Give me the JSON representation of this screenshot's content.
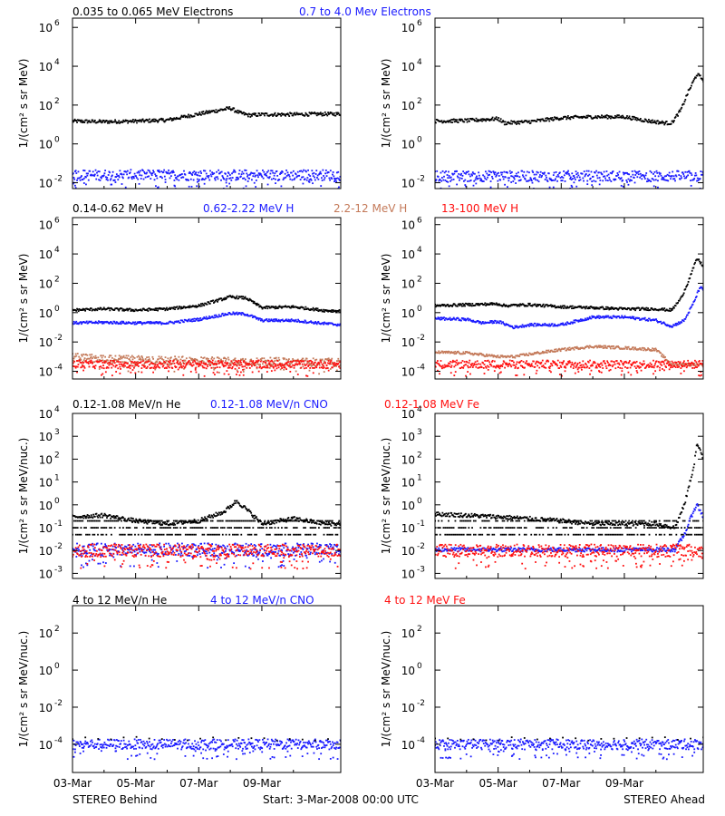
{
  "footer": {
    "left": "STEREO Behind",
    "center": "Start:  3-Mar-2008 00:00 UTC",
    "right": "STEREO Ahead"
  },
  "colors": {
    "black": "#000000",
    "blue": "#1a1aff",
    "tan": "#c47a5a",
    "red": "#ff1010"
  },
  "chart_data": [
    {
      "type": "scatter",
      "row": 1,
      "panels": [
        "STEREO Behind",
        "STEREO Ahead"
      ],
      "legend": [
        {
          "name": "0.035 to 0.065 MeV Electrons",
          "color": "#000000"
        },
        {
          "name": "0.7 to 4.0 Mev Electrons",
          "color": "#1a1aff"
        }
      ],
      "ylabel": "1/(cm² s sr MeV)",
      "yscale": "log",
      "ylim": [
        0.005,
        3000000
      ],
      "yticks": [
        {
          "label": "10",
          "exp": "6",
          "value": 1000000
        },
        {
          "label": "10",
          "exp": "4",
          "value": 10000
        },
        {
          "label": "10",
          "exp": "2",
          "value": 100
        },
        {
          "label": "10",
          "exp": "0",
          "value": 1
        },
        {
          "label": "10",
          "exp": "-2",
          "value": 0.01
        }
      ],
      "series_left": [
        {
          "name": "0.035 to 0.065 MeV Electrons",
          "color": "#000000",
          "points": [
            [
              0,
              15
            ],
            [
              1,
              14
            ],
            [
              2,
              15
            ],
            [
              3,
              17
            ],
            [
              4,
              35
            ],
            [
              5,
              70
            ],
            [
              5.3,
              40
            ],
            [
              5.6,
              30
            ],
            [
              6,
              33
            ],
            [
              7,
              33
            ],
            [
              8,
              35
            ],
            [
              8.5,
              35
            ]
          ]
        },
        {
          "name": "0.7 to 4.0 Mev Electrons",
          "color": "#1a1aff",
          "band": true,
          "points": [
            [
              0,
              0.025
            ],
            [
              8.5,
              0.025
            ]
          ]
        }
      ],
      "series_right": [
        {
          "name": "0.035 to 0.065 MeV Electrons",
          "color": "#000000",
          "points": [
            [
              0,
              15
            ],
            [
              1,
              16
            ],
            [
              2,
              20
            ],
            [
              2.2,
              12
            ],
            [
              3,
              14
            ],
            [
              4,
              22
            ],
            [
              5,
              25
            ],
            [
              6,
              25
            ],
            [
              6.8,
              15
            ],
            [
              7.3,
              12
            ],
            [
              7.5,
              12
            ],
            [
              7.8,
              60
            ],
            [
              8,
              400
            ],
            [
              8.3,
              4000
            ],
            [
              8.5,
              2000
            ]
          ]
        },
        {
          "name": "0.7 to 4.0 Mev Electrons",
          "color": "#1a1aff",
          "band": true,
          "points": [
            [
              0,
              0.022
            ],
            [
              8.5,
              0.022
            ]
          ]
        }
      ]
    },
    {
      "type": "scatter",
      "row": 2,
      "panels": [
        "STEREO Behind",
        "STEREO Ahead"
      ],
      "legend": [
        {
          "name": "0.14-0.62 MeV H",
          "color": "#000000"
        },
        {
          "name": "0.62-2.22 MeV H",
          "color": "#1a1aff"
        },
        {
          "name": "2.2-12 MeV H",
          "color": "#c47a5a"
        },
        {
          "name": "13-100 MeV H",
          "color": "#ff1010"
        }
      ],
      "ylabel": "1/(cm² s sr MeV)",
      "yscale": "log",
      "ylim": [
        3e-05,
        3000000
      ],
      "yticks": [
        {
          "label": "10",
          "exp": "6",
          "value": 1000000
        },
        {
          "label": "10",
          "exp": "4",
          "value": 10000
        },
        {
          "label": "10",
          "exp": "2",
          "value": 100
        },
        {
          "label": "10",
          "exp": "0",
          "value": 1
        },
        {
          "label": "10",
          "exp": "-2",
          "value": 0.01
        },
        {
          "label": "10",
          "exp": "-4",
          "value": 0.0001
        }
      ],
      "series_left": [
        {
          "name": "0.14-0.62 MeV H",
          "color": "#000000",
          "points": [
            [
              0,
              1.5
            ],
            [
              1,
              1.8
            ],
            [
              2,
              1.5
            ],
            [
              3,
              1.8
            ],
            [
              4,
              3
            ],
            [
              5,
              12
            ],
            [
              5.5,
              10
            ],
            [
              6,
              2.2
            ],
            [
              7,
              2.5
            ],
            [
              8,
              1.4
            ],
            [
              8.5,
              1.3
            ]
          ]
        },
        {
          "name": "0.62-2.22 MeV H",
          "color": "#1a1aff",
          "points": [
            [
              0,
              0.2
            ],
            [
              1,
              0.22
            ],
            [
              2,
              0.2
            ],
            [
              3,
              0.2
            ],
            [
              4,
              0.35
            ],
            [
              5,
              0.9
            ],
            [
              5.5,
              0.8
            ],
            [
              6,
              0.3
            ],
            [
              7,
              0.3
            ],
            [
              8,
              0.18
            ],
            [
              8.5,
              0.15
            ]
          ]
        },
        {
          "name": "2.2-12 MeV H",
          "color": "#c47a5a",
          "band": true,
          "points": [
            [
              0,
              0.0009
            ],
            [
              2,
              0.0006
            ],
            [
              8.5,
              0.0004
            ]
          ]
        },
        {
          "name": "13-100 MeV H",
          "color": "#ff1010",
          "band": true,
          "points": [
            [
              0,
              0.0003
            ],
            [
              8.5,
              0.0003
            ]
          ]
        }
      ],
      "series_right": [
        {
          "name": "0.14-0.62 MeV H",
          "color": "#000000",
          "points": [
            [
              0,
              3
            ],
            [
              1,
              3.5
            ],
            [
              2,
              4
            ],
            [
              2.2,
              3
            ],
            [
              3,
              3.5
            ],
            [
              4,
              2.5
            ],
            [
              5,
              2.2
            ],
            [
              6,
              1.8
            ],
            [
              7,
              1.8
            ],
            [
              7.5,
              1.5
            ],
            [
              7.8,
              10
            ],
            [
              8,
              100
            ],
            [
              8.3,
              5000
            ],
            [
              8.5,
              1500
            ]
          ]
        },
        {
          "name": "0.62-2.22 MeV H",
          "color": "#1a1aff",
          "points": [
            [
              0,
              0.4
            ],
            [
              1,
              0.35
            ],
            [
              1.5,
              0.2
            ],
            [
              2,
              0.25
            ],
            [
              2.5,
              0.1
            ],
            [
              3,
              0.15
            ],
            [
              4,
              0.15
            ],
            [
              5,
              0.5
            ],
            [
              6,
              0.5
            ],
            [
              7,
              0.3
            ],
            [
              7.5,
              0.12
            ],
            [
              7.9,
              0.3
            ],
            [
              8.2,
              5
            ],
            [
              8.4,
              60
            ],
            [
              8.5,
              30
            ]
          ]
        },
        {
          "name": "2.2-12 MeV H",
          "color": "#c47a5a",
          "points": [
            [
              0,
              0.002
            ],
            [
              1,
              0.0018
            ],
            [
              2,
              0.001
            ],
            [
              2.5,
              0.001
            ],
            [
              3,
              0.0015
            ],
            [
              4,
              0.003
            ],
            [
              5,
              0.005
            ],
            [
              6,
              0.004
            ],
            [
              7,
              0.003
            ],
            [
              7.5,
              0.0003
            ],
            [
              8.5,
              0.0003
            ]
          ]
        },
        {
          "name": "13-100 MeV H",
          "color": "#ff1010",
          "band": true,
          "points": [
            [
              0,
              0.0003
            ],
            [
              8.5,
              0.0003
            ]
          ]
        }
      ]
    },
    {
      "type": "scatter",
      "row": 3,
      "panels": [
        "STEREO Behind",
        "STEREO Ahead"
      ],
      "legend": [
        {
          "name": "0.12-1.08 MeV/n He",
          "color": "#000000"
        },
        {
          "name": "0.12-1.08 MeV/n CNO",
          "color": "#1a1aff"
        },
        {
          "name": "0.12-1.08 MeV Fe",
          "color": "#ff1010"
        }
      ],
      "ylabel": "1/(cm² s sr MeV/nuc.)",
      "yscale": "log",
      "ylim": [
        0.0006,
        10000
      ],
      "yticks": [
        {
          "label": "10",
          "exp": "4",
          "value": 10000
        },
        {
          "label": "10",
          "exp": "3",
          "value": 1000
        },
        {
          "label": "10",
          "exp": "2",
          "value": 100
        },
        {
          "label": "10",
          "exp": "1",
          "value": 10
        },
        {
          "label": "10",
          "exp": "0",
          "value": 1
        },
        {
          "label": "10",
          "exp": "-1",
          "value": 0.1
        },
        {
          "label": "10",
          "exp": "-2",
          "value": 0.01
        },
        {
          "label": "10",
          "exp": "-3",
          "value": 0.001
        }
      ],
      "series_left": [
        {
          "name": "0.12-1.08 MeV/n He",
          "color": "#000000",
          "levels": [
            0.2,
            0.1,
            0.05
          ],
          "points": [
            [
              0,
              0.3
            ],
            [
              1,
              0.35
            ],
            [
              2,
              0.2
            ],
            [
              3,
              0.15
            ],
            [
              4,
              0.2
            ],
            [
              4.8,
              0.5
            ],
            [
              5.2,
              1.5
            ],
            [
              5.6,
              0.5
            ],
            [
              6,
              0.15
            ],
            [
              7,
              0.25
            ],
            [
              8,
              0.15
            ],
            [
              8.5,
              0.15
            ]
          ]
        },
        {
          "name": "0.12-1.08 MeV/n CNO",
          "color": "#1a1aff",
          "band": true,
          "points": [
            [
              0,
              0.011
            ],
            [
              8.5,
              0.011
            ]
          ]
        },
        {
          "name": "0.12-1.08 MeV Fe",
          "color": "#ff1010",
          "band": true,
          "points": [
            [
              0,
              0.01
            ],
            [
              8.5,
              0.01
            ]
          ]
        }
      ],
      "series_right": [
        {
          "name": "0.12-1.08 MeV/n He",
          "color": "#000000",
          "levels": [
            0.2,
            0.1,
            0.05
          ],
          "points": [
            [
              0,
              0.4
            ],
            [
              1,
              0.35
            ],
            [
              2,
              0.3
            ],
            [
              3,
              0.25
            ],
            [
              4,
              0.2
            ],
            [
              5,
              0.15
            ],
            [
              6,
              0.15
            ],
            [
              7,
              0.15
            ],
            [
              7.6,
              0.1
            ],
            [
              7.9,
              1
            ],
            [
              8.2,
              50
            ],
            [
              8.3,
              500
            ],
            [
              8.5,
              100
            ]
          ]
        },
        {
          "name": "0.12-1.08 MeV/n CNO",
          "color": "#1a1aff",
          "points": [
            [
              0,
              0.011
            ],
            [
              7.6,
              0.011
            ],
            [
              7.9,
              0.05
            ],
            [
              8.2,
              0.6
            ],
            [
              8.3,
              1
            ],
            [
              8.5,
              0.3
            ]
          ]
        },
        {
          "name": "0.12-1.08 MeV Fe",
          "color": "#ff1010",
          "band": true,
          "points": [
            [
              0,
              0.01
            ],
            [
              8.5,
              0.01
            ]
          ]
        }
      ]
    },
    {
      "type": "scatter",
      "row": 4,
      "panels": [
        "STEREO Behind",
        "STEREO Ahead"
      ],
      "legend": [
        {
          "name": "4 to 12 MeV/n He",
          "color": "#000000"
        },
        {
          "name": "4 to 12 MeV/n CNO",
          "color": "#1a1aff"
        },
        {
          "name": "4 to 12 MeV Fe",
          "color": "#ff1010"
        }
      ],
      "ylabel": "1/(cm² s sr MeV/nuc.)",
      "yscale": "log",
      "ylim": [
        3e-06,
        3000
      ],
      "yticks": [
        {
          "label": "10",
          "exp": "2",
          "value": 100
        },
        {
          "label": "10",
          "exp": "0",
          "value": 1
        },
        {
          "label": "10",
          "exp": "-2",
          "value": 0.01
        },
        {
          "label": "10",
          "exp": "-4",
          "value": 0.0001
        }
      ],
      "series_left": [
        {
          "name": "4 to 12 MeV/n CNO",
          "color": "#1a1aff",
          "band": true,
          "points": [
            [
              0,
              0.0001
            ],
            [
              8.5,
              0.0001
            ]
          ]
        },
        {
          "name": "4 to 12 MeV/n He",
          "color": "#000000",
          "sparse": true,
          "points": [
            [
              0,
              0.0002
            ],
            [
              8.5,
              0.0002
            ]
          ]
        }
      ],
      "series_right": [
        {
          "name": "4 to 12 MeV/n CNO",
          "color": "#1a1aff",
          "band": true,
          "points": [
            [
              0,
              0.0001
            ],
            [
              8.5,
              0.0001
            ]
          ]
        },
        {
          "name": "4 to 12 MeV/n He",
          "color": "#000000",
          "sparse": true,
          "points": [
            [
              0,
              0.0002
            ],
            [
              8.5,
              0.0002
            ]
          ]
        }
      ]
    }
  ],
  "xaxis": {
    "days": [
      "03-Mar",
      "05-Mar",
      "07-Mar",
      "09-Mar"
    ],
    "tick_values": [
      0,
      2,
      4,
      6
    ],
    "xlim": [
      0,
      8.5
    ]
  }
}
